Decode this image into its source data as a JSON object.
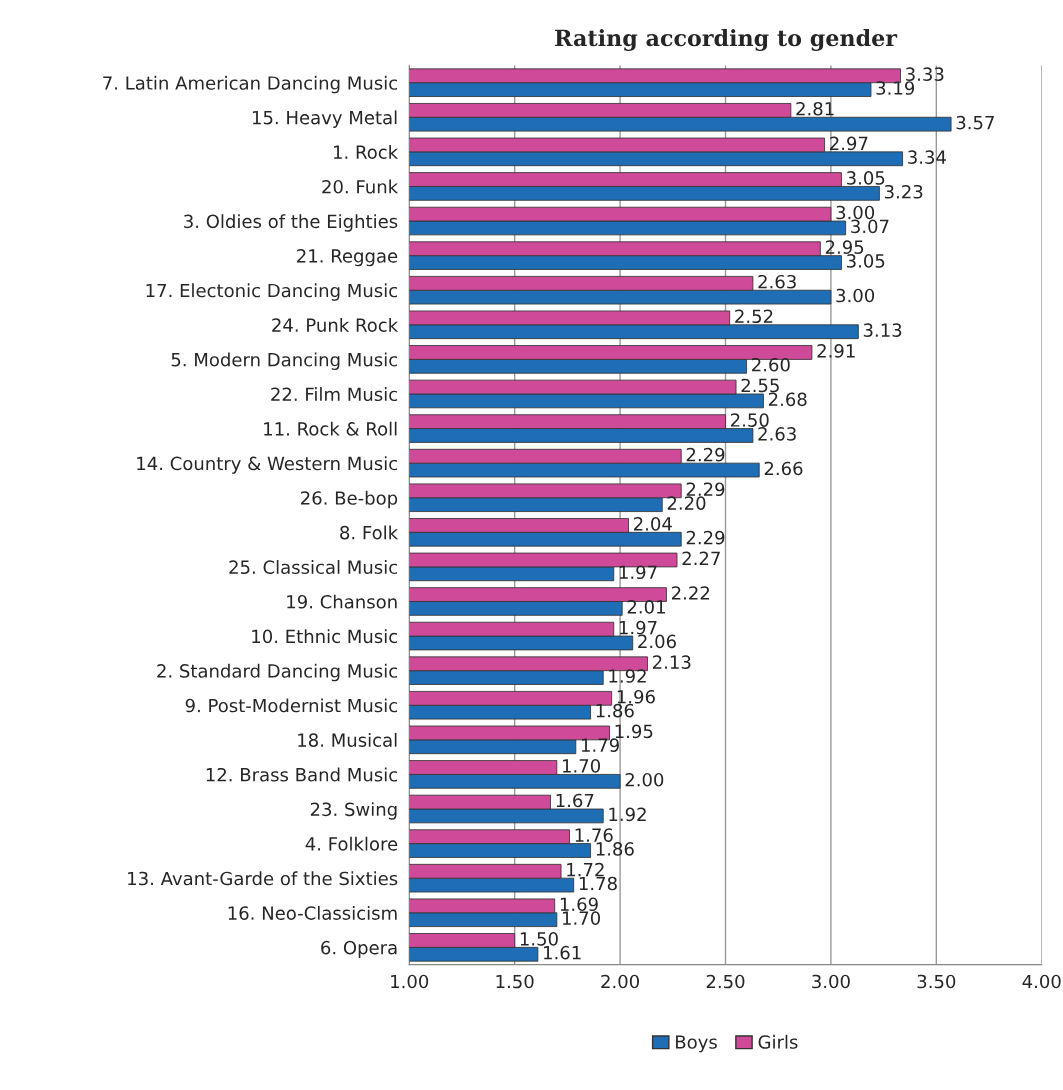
{
  "chart_data": {
    "type": "bar",
    "orientation": "horizontal",
    "title": "Rating according to gender",
    "categories": [
      "7. Latin American Dancing Music",
      "15. Heavy Metal",
      "1. Rock",
      "20. Funk",
      "3. Oldies of the Eighties",
      "21. Reggae",
      "17. Electonic Dancing Music",
      "24. Punk Rock",
      "5. Modern Dancing Music",
      "22. Film Music",
      "11. Rock & Roll",
      "14. Country & Western Music",
      "26. Be-bop",
      "8. Folk",
      "25. Classical Music",
      "19. Chanson",
      "10. Ethnic Music",
      "2. Standard Dancing Music",
      "9. Post-Modernist Music",
      "18. Musical",
      "12. Brass Band Music",
      "23. Swing",
      "4. Folklore",
      "13. Avant-Garde of the Sixties",
      "16. Neo-Classicism",
      "6. Opera"
    ],
    "series": [
      {
        "name": "Boys",
        "color": "#1f6db5",
        "values": [
          3.19,
          3.57,
          3.34,
          3.23,
          3.07,
          3.05,
          3.0,
          3.13,
          2.6,
          2.68,
          2.63,
          2.66,
          2.2,
          2.29,
          1.97,
          2.01,
          2.06,
          1.92,
          1.86,
          1.79,
          2.0,
          1.92,
          1.86,
          1.78,
          1.7,
          1.61
        ],
        "value_labels": [
          "3.19",
          "3.57",
          "3.34",
          "3.23",
          "3.07",
          "3.05",
          "3.00",
          "3.13",
          "2.60",
          "2.68",
          "2.63",
          "2.66",
          "2.20",
          "2.29",
          "1.97",
          "2.01",
          "2.06",
          "1.92",
          "1.86",
          "1.79",
          "2.00",
          "1.92",
          "1.86",
          "1.78",
          "1.70",
          "1.61"
        ]
      },
      {
        "name": "Girls",
        "color": "#cf4b9a",
        "values": [
          3.33,
          2.81,
          2.97,
          3.05,
          3.0,
          2.95,
          2.63,
          2.52,
          2.91,
          2.55,
          2.5,
          2.29,
          2.29,
          2.04,
          2.27,
          2.22,
          1.97,
          2.13,
          1.96,
          1.95,
          1.7,
          1.67,
          1.76,
          1.72,
          1.69,
          1.5
        ],
        "value_labels": [
          "3.33",
          "2.81",
          "2.97",
          "3.05",
          "3.00",
          "2.95",
          "2.63",
          "2.52",
          "2.91",
          "2.55",
          "2.50",
          "2.29",
          "2.29",
          "2.04",
          "2.27",
          "2.22",
          "1.97",
          "2.13",
          "1.96",
          "1.95",
          "1.70",
          "1.67",
          "1.76",
          "1.72",
          "1.69",
          "1.50"
        ]
      }
    ],
    "xlim": [
      1,
      4
    ],
    "xticks": [
      {
        "value": 1,
        "label": "1.00"
      },
      {
        "value": 1.5,
        "label": "1.50"
      },
      {
        "value": 2,
        "label": "2.00"
      },
      {
        "value": 2.5,
        "label": "2.50"
      },
      {
        "value": 3,
        "label": "3.00"
      },
      {
        "value": 3.5,
        "label": "3.50"
      },
      {
        "value": 4,
        "label": "4.00"
      }
    ],
    "grid": "x",
    "legend": "bottom"
  }
}
